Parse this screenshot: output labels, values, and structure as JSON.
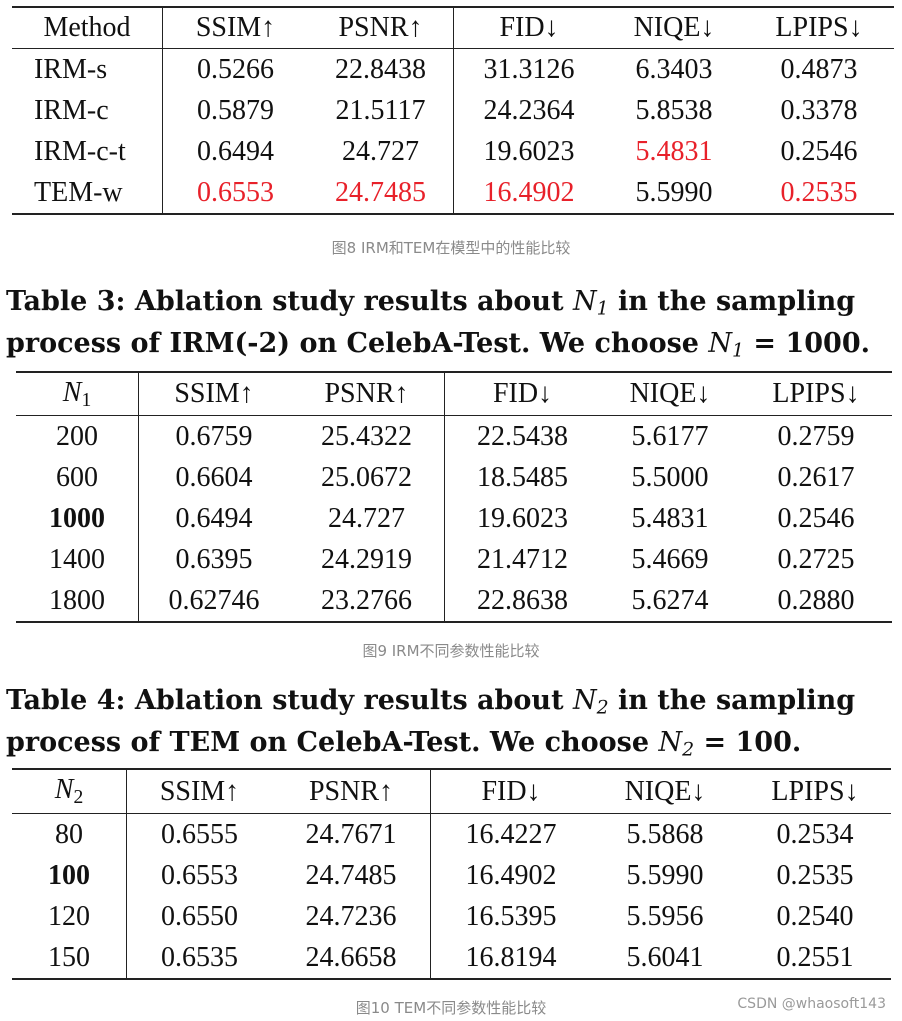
{
  "table1": {
    "headers": [
      "Method",
      "SSIM↑",
      "PSNR↑",
      "FID↓",
      "NIQE↓",
      "LPIPS↓"
    ],
    "rows": [
      [
        "IRM-s",
        "0.5266",
        "22.8438",
        "31.3126",
        "6.3403",
        "0.4873"
      ],
      [
        "IRM-c",
        "0.5879",
        "21.5117",
        "24.2364",
        "5.8538",
        "0.3378"
      ],
      [
        "IRM-c-t",
        "0.6494",
        "24.727",
        "19.6023",
        "5.4831",
        "0.2546"
      ],
      [
        "TEM-w",
        "0.6553",
        "24.7485",
        "16.4902",
        "5.5990",
        "0.2535"
      ]
    ],
    "caption": "图8 IRM和TEM在模型中的性能比较"
  },
  "table2": {
    "title_line1_a": "Table 3: Ablation study results about ",
    "title_symbol": "N",
    "title_sub": "1",
    "title_line1_b": " in the sampling",
    "title_line2_a": "process of IRM(-2) on CelebA-Test. We choose ",
    "title_line2_b": " = 1000.",
    "header_symbol": "N",
    "header_sub": "1",
    "headers": [
      "SSIM↑",
      "PSNR↑",
      "FID↓",
      "NIQE↓",
      "LPIPS↓"
    ],
    "rows": [
      [
        "200",
        "0.6759",
        "25.4322",
        "22.5438",
        "5.6177",
        "0.2759"
      ],
      [
        "600",
        "0.6604",
        "25.0672",
        "18.5485",
        "5.5000",
        "0.2617"
      ],
      [
        "1000",
        "0.6494",
        "24.727",
        "19.6023",
        "5.4831",
        "0.2546"
      ],
      [
        "1400",
        "0.6395",
        "24.2919",
        "21.4712",
        "5.4669",
        "0.2725"
      ],
      [
        "1800",
        "0.62746",
        "23.2766",
        "22.8638",
        "5.6274",
        "0.2880"
      ]
    ],
    "caption": "图9 IRM不同参数性能比较"
  },
  "table3": {
    "title_line1_a": "Table 4: Ablation study results about ",
    "title_symbol": "N",
    "title_sub": "2",
    "title_line1_b": " in the sampling",
    "title_line2_a": "process of TEM on CelebA-Test. We choose ",
    "title_line2_b": " = 100.",
    "header_symbol": "N",
    "header_sub": "2",
    "headers": [
      "SSIM↑",
      "PSNR↑",
      "FID↓",
      "NIQE↓",
      "LPIPS↓"
    ],
    "rows": [
      [
        "80",
        "0.6555",
        "24.7671",
        "16.4227",
        "5.5868",
        "0.2534"
      ],
      [
        "100",
        "0.6553",
        "24.7485",
        "16.4902",
        "5.5990",
        "0.2535"
      ],
      [
        "120",
        "0.6550",
        "24.7236",
        "16.5395",
        "5.5956",
        "0.2540"
      ],
      [
        "150",
        "0.6535",
        "24.6658",
        "16.8194",
        "5.6041",
        "0.2551"
      ]
    ],
    "caption": "图10 TEM不同参数性能比较"
  },
  "watermark": "CSDN @whaosoft143",
  "colors": {
    "highlight": "#e8212a",
    "caption": "#8a8a8a"
  }
}
